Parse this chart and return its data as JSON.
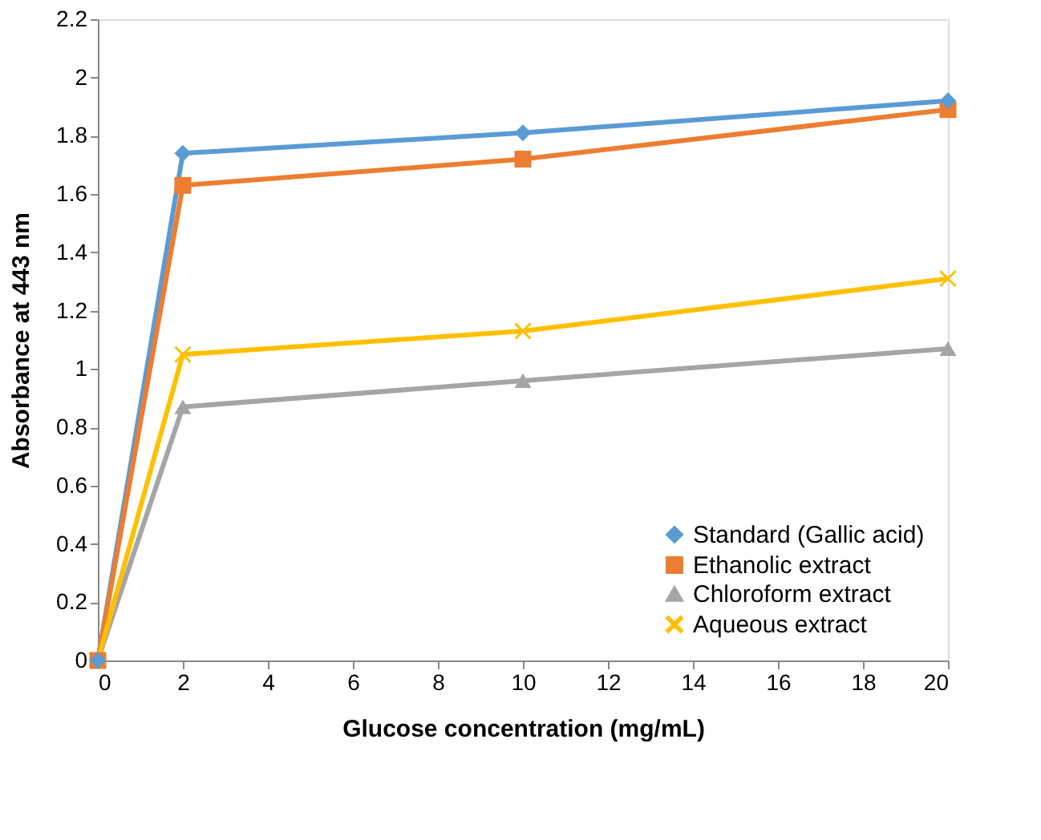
{
  "chart_data": {
    "type": "line",
    "xlabel": "Glucose concentration (mg/mL)",
    "ylabel": "Absorbance at 443 nm",
    "x": [
      0,
      2,
      10,
      20
    ],
    "xlim": [
      0,
      20
    ],
    "xticks": [
      0,
      2,
      4,
      6,
      8,
      10,
      12,
      14,
      16,
      18,
      20
    ],
    "ylim": [
      0,
      2.2
    ],
    "yticks": [
      0,
      0.2,
      0.4,
      0.6,
      0.8,
      1,
      1.2,
      1.4,
      1.6,
      1.8,
      2,
      2.2
    ],
    "grid": false,
    "legend": "bottom right",
    "series": [
      {
        "name": "Standard (Gallic acid)",
        "color": "#5b9bd5",
        "marker": "diamond",
        "values": [
          0,
          1.74,
          1.81,
          1.92
        ]
      },
      {
        "name": "Ethanolic extract",
        "color": "#ed7d31",
        "marker": "square",
        "values": [
          0,
          1.63,
          1.72,
          1.89
        ]
      },
      {
        "name": "Chloroform extract",
        "color": "#a5a5a5",
        "marker": "triangle",
        "values": [
          0,
          0.87,
          0.96,
          1.07
        ]
      },
      {
        "name": "Aqueous extract",
        "color": "#ffc000",
        "marker": "cross",
        "values": [
          0,
          1.05,
          1.13,
          1.31
        ]
      }
    ]
  }
}
